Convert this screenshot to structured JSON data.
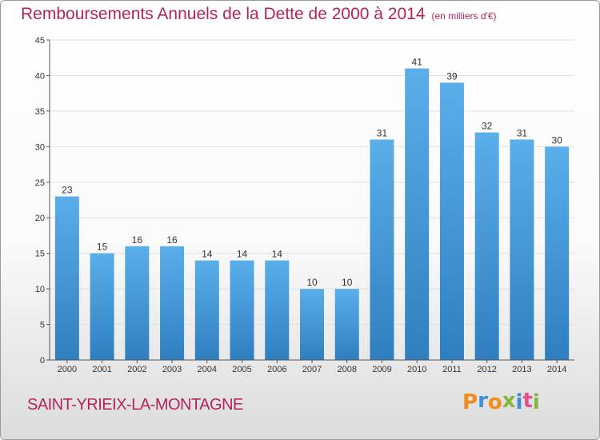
{
  "header": {
    "title": "Remboursements Annuels de la Dette de 2000 à 2014",
    "unit": "(en milliers d'€)"
  },
  "footer": {
    "commune": "SAINT-YRIEIX-LA-MONTAGNE",
    "logo": "Proxiti"
  },
  "colors": {
    "title": "#b4245a",
    "bar_top": "#5aaeea",
    "bar_bottom": "#2f7fc0",
    "grid": "#e0e0e0",
    "logo_letters": [
      "#f28c1e",
      "#3c8ed8",
      "#f28c1e",
      "#7fb83a",
      "#3c8ed8",
      "#e84f8c",
      "#7fb83a"
    ]
  },
  "chart_data": {
    "type": "bar",
    "title": "Remboursements Annuels de la Dette de 2000 à 2014",
    "xlabel": "",
    "ylabel": "",
    "categories": [
      "2000",
      "2001",
      "2002",
      "2003",
      "2004",
      "2005",
      "2006",
      "2007",
      "2008",
      "2009",
      "2010",
      "2011",
      "2012",
      "2013",
      "2014"
    ],
    "values": [
      23,
      15,
      16,
      16,
      14,
      14,
      14,
      10,
      10,
      31,
      41,
      39,
      32,
      31,
      30
    ],
    "ylim": [
      0,
      45
    ],
    "yticks": [
      0,
      5,
      10,
      15,
      20,
      25,
      30,
      35,
      40,
      45
    ],
    "grid": true,
    "data_labels": true
  }
}
